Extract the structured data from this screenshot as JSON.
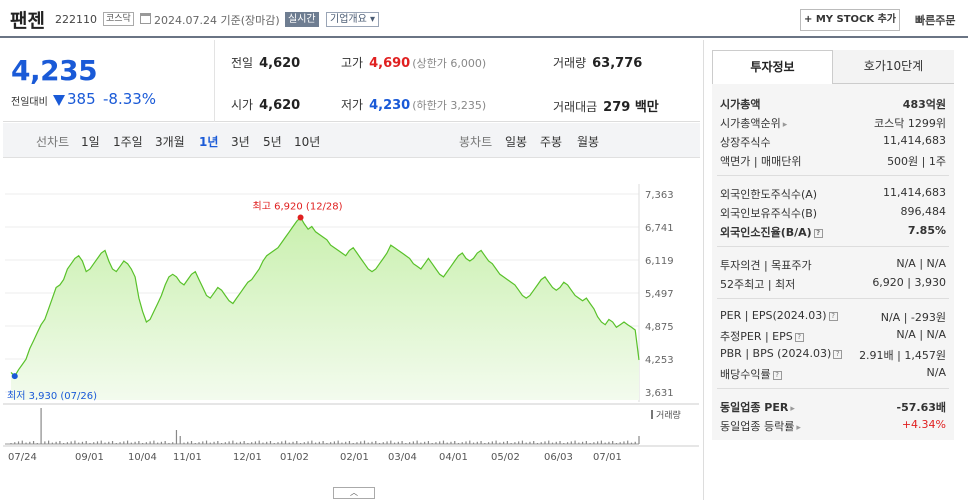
{
  "header": {
    "name": "팬젠",
    "code": "222110",
    "market": "코스닥",
    "date": "2024.07.24",
    "basis": "기준(장마감)",
    "live": "실시간",
    "company_info": "기업개요",
    "mystock": "+ MY STOCK 추가",
    "fast_order": "빠른주문"
  },
  "price": {
    "current": "4,235",
    "change_label": "전일대비",
    "change": "385",
    "change_pct": "-8.33%"
  },
  "quote": {
    "prev_label": "전일",
    "prev": "4,620",
    "high_label": "고가",
    "high": "4,690",
    "upper_limit": "(상한가 6,000)",
    "volume_label": "거래량",
    "volume": "63,776",
    "open_label": "시가",
    "open": "4,620",
    "low_label": "저가",
    "low": "4,230",
    "lower_limit": "(하한가 3,235)",
    "amount_label": "거래대금",
    "amount": "279 백만"
  },
  "period_tabs": {
    "label": "선차트",
    "items": [
      "1일",
      "1주일",
      "3개월",
      "1년",
      "3년",
      "5년",
      "10년"
    ],
    "selected": "1년",
    "candle_label": "봉차트",
    "candle_items": [
      "일봉",
      "주봉",
      "월봉"
    ]
  },
  "chart_data": {
    "type": "area",
    "y_ticks": [
      "7,363",
      "6,741",
      "6,119",
      "5,497",
      "4,875",
      "4,253",
      "3,631"
    ],
    "ylim": [
      3631,
      7363
    ],
    "x_ticks": [
      "07/24",
      "09/01",
      "10/04",
      "11/01",
      "12/01",
      "01/02",
      "02/01",
      "03/04",
      "04/01",
      "05/02",
      "06/03",
      "07/01"
    ],
    "high_annotation": "최고 6,920 (12/28)",
    "low_annotation": "최저 3,930 (07/26)",
    "volume_label": "거래량",
    "series": [
      {
        "values": [
          4000,
          3930,
          4050,
          4150,
          4250,
          4450,
          4600,
          4750,
          4900,
          5000,
          5200,
          5400,
          5600,
          5650,
          5750,
          5950,
          6050,
          6150,
          6200,
          6100,
          5900,
          5950,
          6050,
          6150,
          6250,
          6300,
          6100,
          5950,
          5900,
          6000,
          6100,
          6050,
          5950,
          5800,
          5400,
          5150,
          4950,
          5000,
          5150,
          5300,
          5450,
          5650,
          5800,
          5850,
          5800,
          5700,
          5650,
          5750,
          5850,
          5900,
          5750,
          5600,
          5450,
          5400,
          5500,
          5600,
          5550,
          5450,
          5350,
          5300,
          5400,
          5500,
          5600,
          5700,
          5750,
          5850,
          5950,
          6100,
          6200,
          6250,
          6300,
          6350,
          6450,
          6550,
          6650,
          6750,
          6850,
          6920,
          6800,
          6700,
          6750,
          6650,
          6600,
          6550,
          6500,
          6400,
          6350,
          6300,
          6250,
          6200,
          6300,
          6350,
          6250,
          6150,
          6050,
          5950,
          5900,
          5950,
          6050,
          6150,
          6250,
          6400,
          6350,
          6300,
          6250,
          6200,
          6150,
          6050,
          6000,
          5950,
          6050,
          6150,
          6050,
          5950,
          5850,
          5800,
          5900,
          6000,
          6100,
          6200,
          6250,
          6150,
          6100,
          6150,
          6250,
          6300,
          6200,
          6100,
          6050,
          5950,
          5850,
          5800,
          5750,
          5700,
          5650,
          5550,
          5450,
          5400,
          5450,
          5550,
          5650,
          5750,
          5800,
          5700,
          5600,
          5550,
          5600,
          5700,
          5650,
          5550,
          5450,
          5400,
          5350,
          5400,
          5300,
          5200,
          5050,
          4950,
          4900,
          5000,
          4950,
          4850,
          4900,
          4950,
          4900,
          4850,
          4800,
          4235
        ]
      }
    ]
  },
  "invest_info": {
    "tab_a": "투자정보",
    "tab_b": "호가10단계",
    "market_cap_label": "시가총액",
    "market_cap": "483억원",
    "rank_label": "시가총액순위",
    "rank": "코스닥 1299위",
    "shares_label": "상장주식수",
    "shares": "11,414,683",
    "face_label": "액면가 | 매매단위",
    "face": "500원 | 1주",
    "foreign_limit_label": "외국인한도주식수(A)",
    "foreign_limit": "11,414,683",
    "foreign_hold_label": "외국인보유주식수(B)",
    "foreign_hold": "896,484",
    "foreign_ratio_label": "외국인소진율(B/A)",
    "foreign_ratio": "7.85%",
    "opinion_label": "투자의견 | 목표주가",
    "opinion": "N/A | N/A",
    "week52_label": "52주최고 | 최저",
    "week52": "6,920 | 3,930",
    "per_label": "PER | EPS(2024.03)",
    "per": "N/A | -293원",
    "est_per_label": "추정PER | EPS",
    "est_per": "N/A | N/A",
    "pbr_label": "PBR | BPS (2024.03)",
    "pbr": "2.91배 | 1,457원",
    "div_label": "배당수익률",
    "div": "N/A",
    "sector_per_label": "동일업종 PER",
    "sector_per": "-57.63배",
    "sector_rate_label": "동일업종 등락률",
    "sector_rate": "+4.34%"
  },
  "colors": {
    "up": "#e02020",
    "down": "#1a5ad7",
    "area_line": "#59c12a",
    "area_fill": "#c9f0ae"
  }
}
